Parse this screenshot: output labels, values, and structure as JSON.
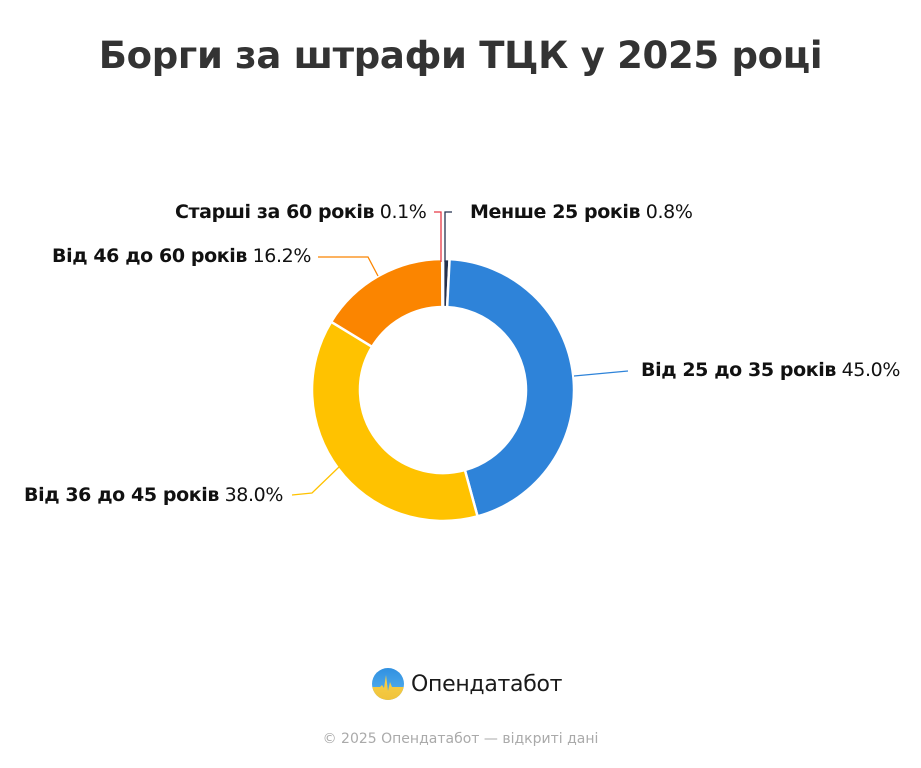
{
  "title": "Борги за штрафи ТЦК у 2025 році",
  "chart_data": {
    "type": "pie",
    "subtype": "donut",
    "title": "Борги за штрафи ТЦК у 2025 році",
    "categories": [
      "Менше 25 років",
      "Від 25 до 35 років",
      "Від 36 до 45 років",
      "Від 46 до 60 років",
      "Старші за 60 років"
    ],
    "values": [
      0.8,
      45.0,
      38.0,
      16.2,
      0.1
    ],
    "colors": [
      "#25324f",
      "#2e83d9",
      "#ffc200",
      "#fb8500",
      "#e63946"
    ],
    "unit": "%",
    "legend": "none (outside labels with leader lines)"
  },
  "labels": [
    {
      "name": "Менше 25 років",
      "pct": "0.8%"
    },
    {
      "name": "Від 25 до 35 років",
      "pct": "45.0%"
    },
    {
      "name": "Від 36 до 45 років",
      "pct": "38.0%"
    },
    {
      "name": "Від 46 до 60 років",
      "pct": "16.2%"
    },
    {
      "name": "Старші за 60 років",
      "pct": "0.1%"
    }
  ],
  "brand": {
    "name": "Опендатабот",
    "logo_icon": "opendatabot-logo-icon"
  },
  "footer": "© 2025 Опендатабот — відкриті дані"
}
